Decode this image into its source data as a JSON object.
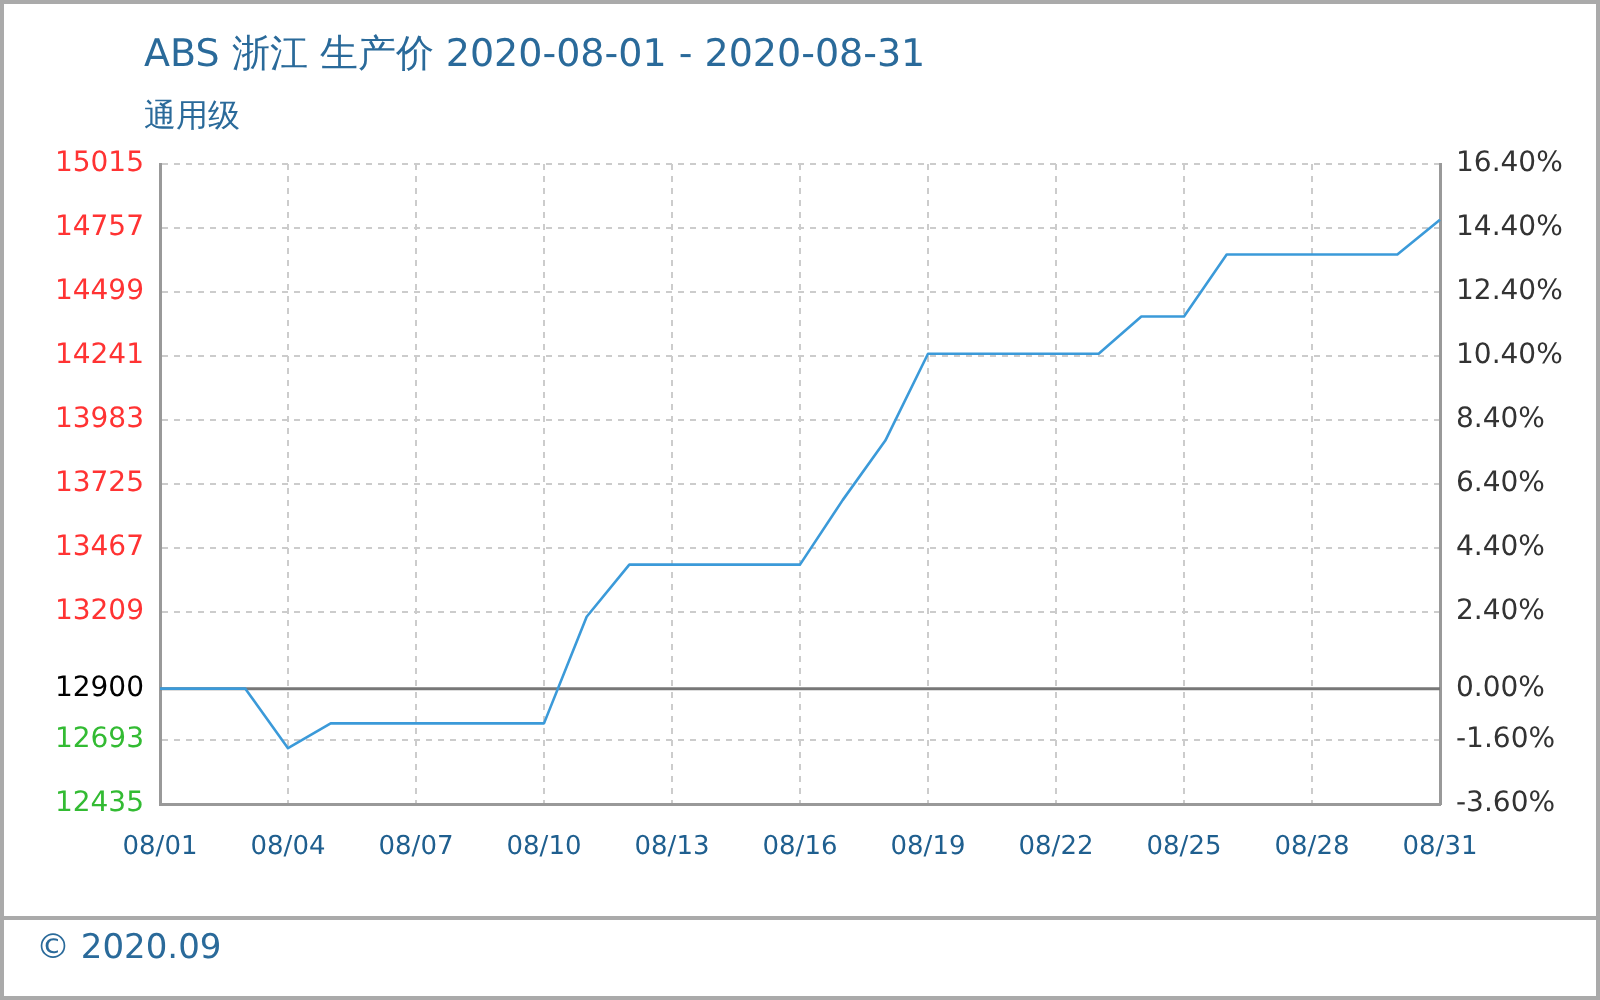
{
  "chart_data": {
    "type": "line",
    "title": "ABS 浙江 生产价 2020-08-01 - 2020-08-31",
    "subtitle": "通用级",
    "categories": [
      "08/01",
      null,
      null,
      "08/04",
      null,
      null,
      "08/07",
      null,
      null,
      "08/10",
      null,
      null,
      "08/13",
      null,
      null,
      "08/16",
      null,
      null,
      "08/19",
      null,
      null,
      "08/22",
      null,
      null,
      "08/25",
      null,
      null,
      "08/28",
      null,
      null,
      "08/31"
    ],
    "series": [
      {
        "color": "#3b9ad9",
        "values": [
          12900,
          12900,
          12900,
          12660,
          12760,
          12760,
          12760,
          12760,
          12760,
          12760,
          13190,
          13400,
          13400,
          13400,
          13400,
          13400,
          13660,
          13900,
          14250,
          14250,
          14250,
          14250,
          14250,
          14400,
          14400,
          14650,
          14650,
          14650,
          14650,
          14650,
          14790
        ]
      }
    ],
    "ylim": [
      12435,
      15015
    ],
    "yticks": [
      12435,
      12693,
      12900,
      13209,
      13467,
      13725,
      13983,
      14241,
      14499,
      14757,
      15015
    ],
    "y2lim": [
      -3.6,
      16.4
    ],
    "y2ticks": [
      {
        "value": -3.6,
        "label": "-3.60%"
      },
      {
        "value": -1.6,
        "label": "-1.60%"
      },
      {
        "value": 0,
        "label": "0.00%"
      },
      {
        "value": 2.4,
        "label": "2.40%"
      },
      {
        "value": 4.4,
        "label": "4.40%"
      },
      {
        "value": 6.4,
        "label": "6.40%"
      },
      {
        "value": 8.4,
        "label": "8.40%"
      },
      {
        "value": 10.4,
        "label": "10.40%"
      },
      {
        "value": 12.4,
        "label": "12.40%"
      },
      {
        "value": 14.4,
        "label": "14.40%"
      },
      {
        "value": 16.4,
        "label": "16.40%"
      }
    ],
    "ref_lines": [
      {
        "axis": "y",
        "value": 12900,
        "color": "#777777"
      }
    ],
    "annotations": [
      "© 2020.09"
    ],
    "grid": true,
    "legend": false,
    "marker": "none",
    "line_style": "solid"
  }
}
